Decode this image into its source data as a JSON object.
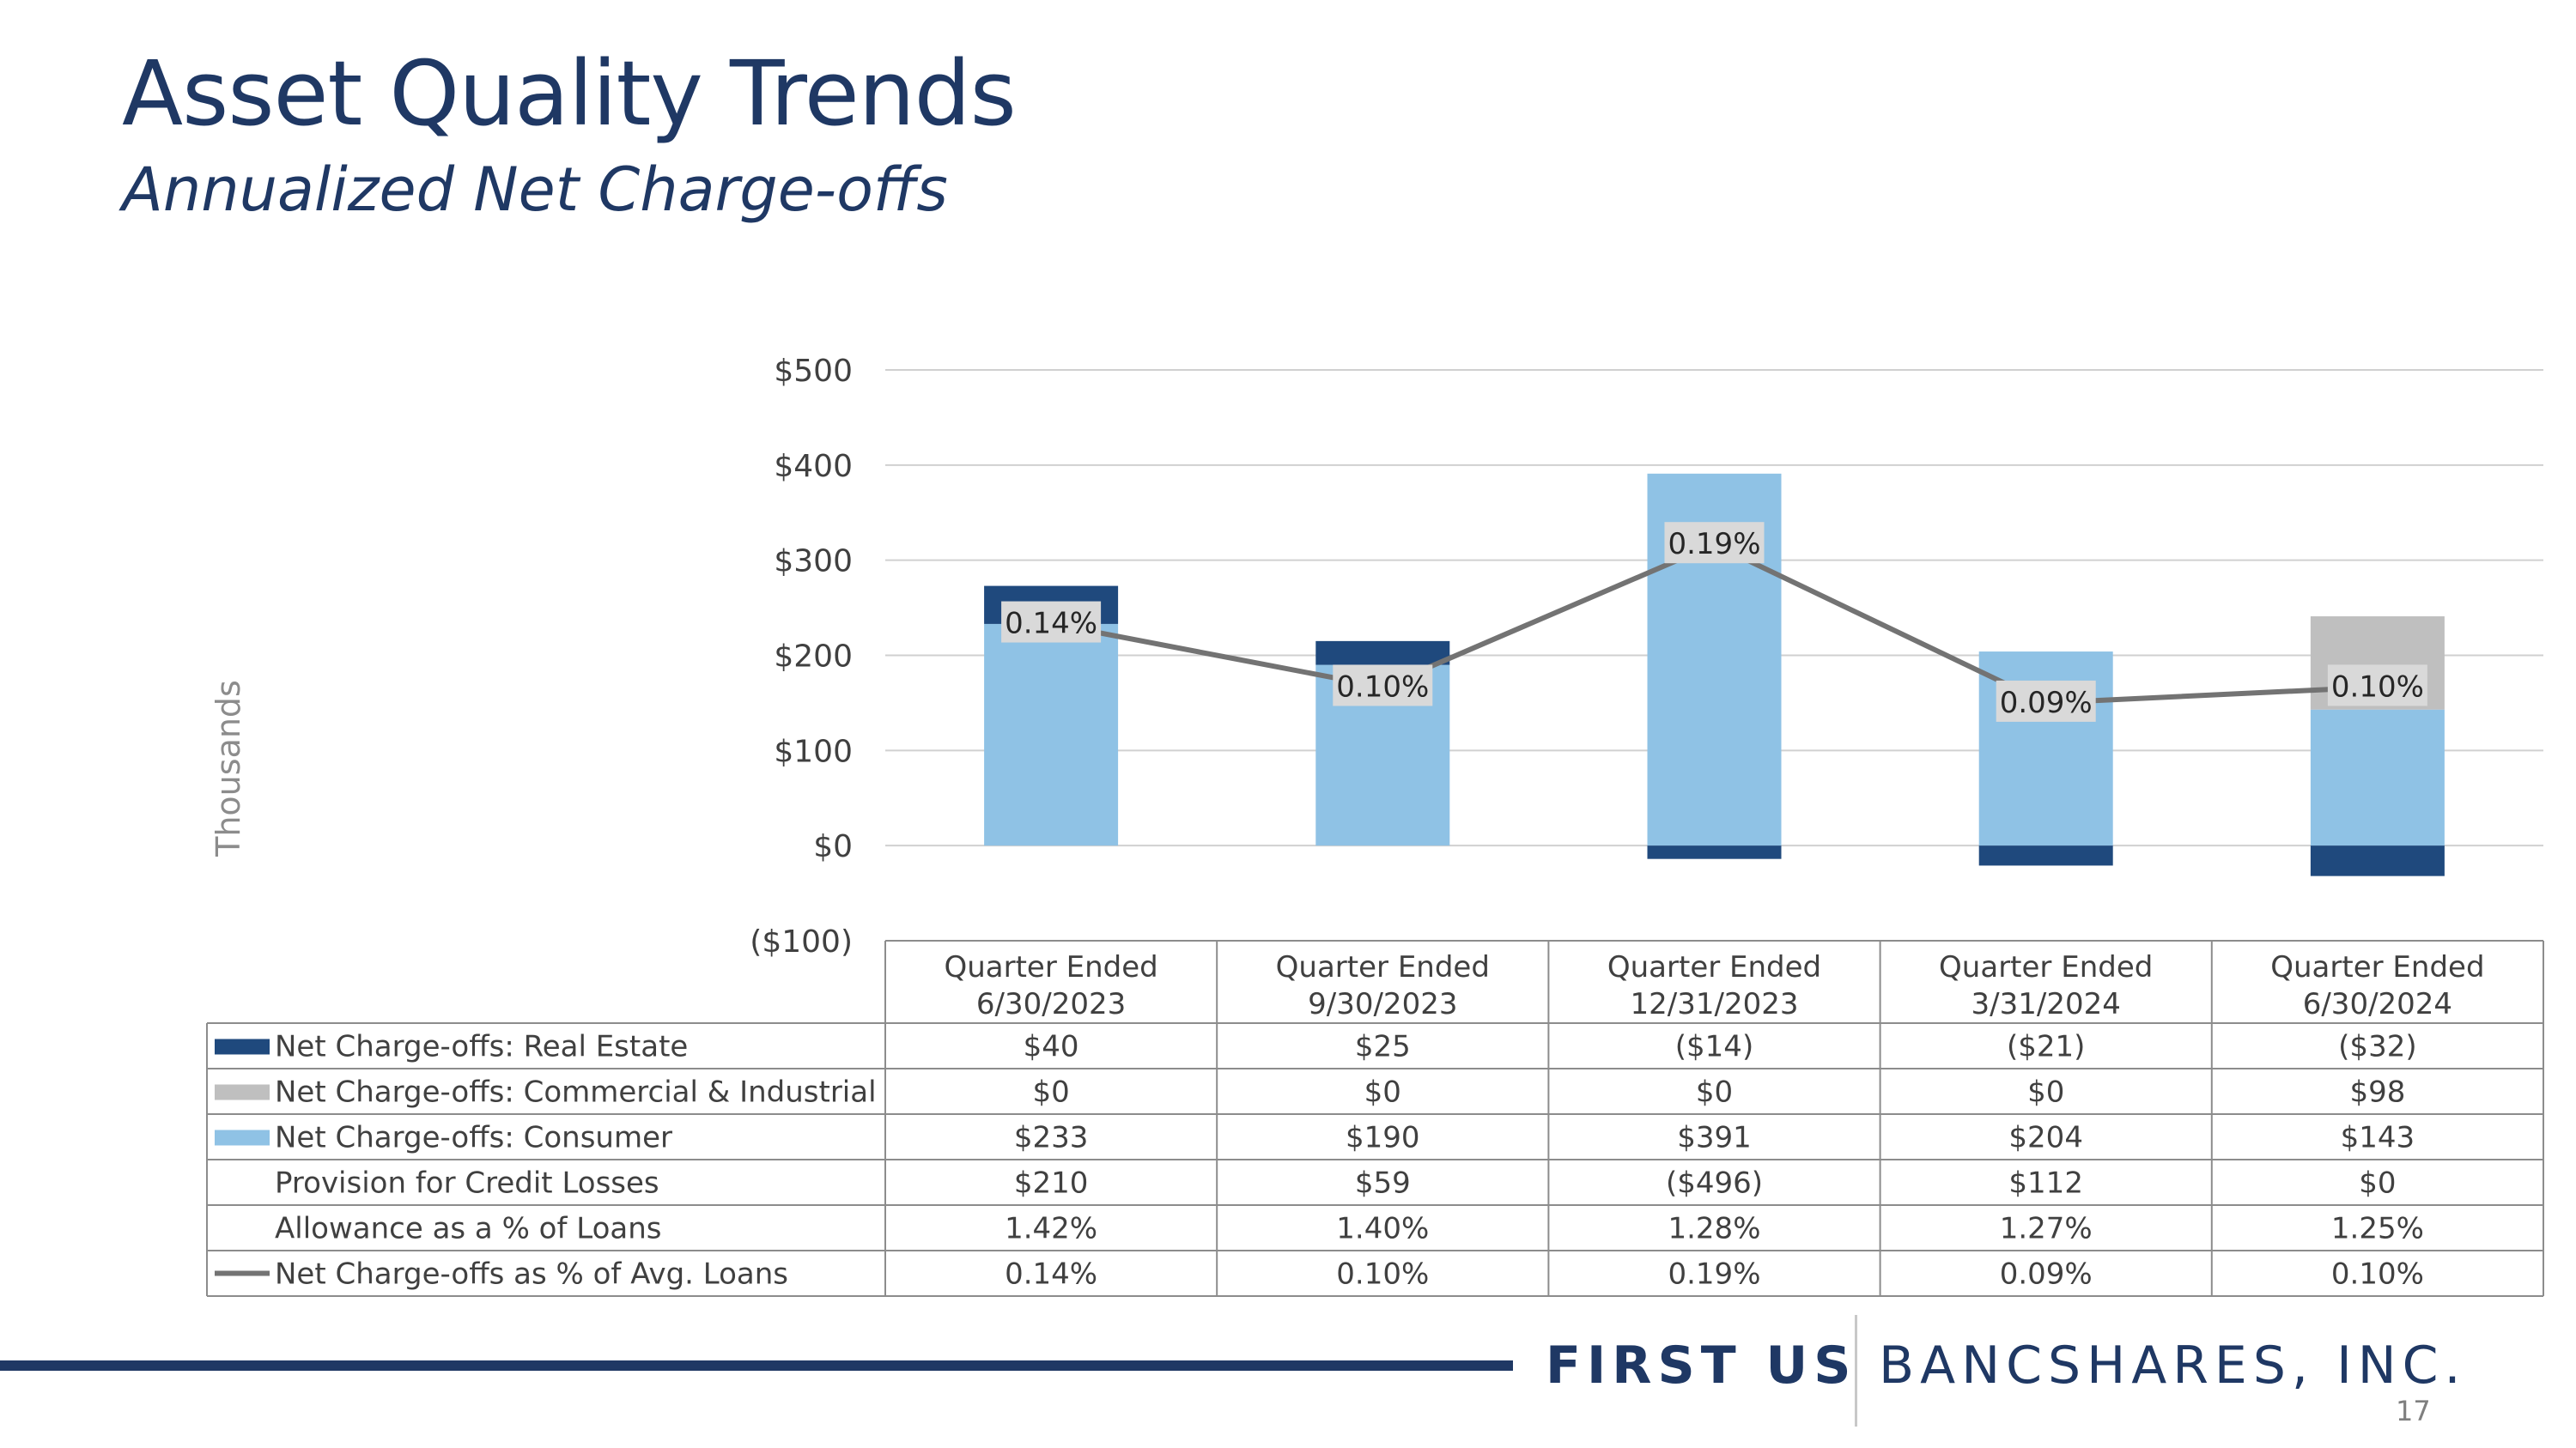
{
  "title": "Asset Quality Trends",
  "subtitle": "Annualized Net Charge-offs",
  "logo": {
    "first": "FIRST US",
    "rest": "BANCSHARES, INC."
  },
  "page_number": "17",
  "colors": {
    "real_estate": "#1f497d",
    "commercial": "#bfbfbf",
    "consumer": "#8fc2e5",
    "line": "#737373",
    "grid": "#d0d0d0",
    "text": "#404040"
  },
  "chart_data": {
    "type": "bar",
    "stacked": true,
    "ylabel": "Thousands",
    "ylim": [
      -100,
      500
    ],
    "yticks": [
      "($100)",
      "$0",
      "$100",
      "$200",
      "$300",
      "$400",
      "$500"
    ],
    "yticks_values": [
      -100,
      0,
      100,
      200,
      300,
      400,
      500
    ],
    "categories": [
      [
        "Quarter Ended",
        "6/30/2023"
      ],
      [
        "Quarter Ended",
        "9/30/2023"
      ],
      [
        "Quarter Ended",
        "12/31/2023"
      ],
      [
        "Quarter Ended",
        "3/31/2024"
      ],
      [
        "Quarter Ended",
        "6/30/2024"
      ]
    ],
    "series": [
      {
        "name": "Net Charge-offs: Consumer",
        "values": [
          233,
          190,
          391,
          204,
          143
        ]
      },
      {
        "name": "Net Charge-offs: Commercial & Industrial",
        "values": [
          0,
          0,
          0,
          0,
          98
        ]
      },
      {
        "name": "Net Charge-offs: Real Estate",
        "values": [
          40,
          25,
          -14,
          -21,
          -32
        ]
      }
    ],
    "line_series": {
      "name": "Net Charge-offs as % of Avg. Loans",
      "values": [
        0.14,
        0.1,
        0.19,
        0.09,
        0.1
      ],
      "labels": [
        "0.14%",
        "0.10%",
        "0.19%",
        "0.09%",
        "0.10%"
      ]
    }
  },
  "table": {
    "rows": [
      {
        "label": "Net Charge-offs: Real Estate",
        "legend": "box",
        "color": "#1f497d",
        "values": [
          "$40",
          "$25",
          "($14)",
          "($21)",
          "($32)"
        ]
      },
      {
        "label": "Net Charge-offs: Commercial & Industrial",
        "legend": "box",
        "color": "#bfbfbf",
        "values": [
          "$0",
          "$0",
          "$0",
          "$0",
          "$98"
        ]
      },
      {
        "label": "Net Charge-offs: Consumer",
        "legend": "box",
        "color": "#8fc2e5",
        "values": [
          "$233",
          "$190",
          "$391",
          "$204",
          "$143"
        ]
      },
      {
        "label": "Provision for Credit Losses",
        "legend": "none",
        "color": "",
        "values": [
          "$210",
          "$59",
          "($496)",
          "$112",
          "$0"
        ]
      },
      {
        "label": "Allowance as a % of Loans",
        "legend": "none",
        "color": "",
        "values": [
          "1.42%",
          "1.40%",
          "1.28%",
          "1.27%",
          "1.25%"
        ]
      },
      {
        "label": "Net Charge-offs as % of Avg. Loans",
        "legend": "line",
        "color": "#737373",
        "values": [
          "0.14%",
          "0.10%",
          "0.19%",
          "0.09%",
          "0.10%"
        ]
      }
    ]
  }
}
